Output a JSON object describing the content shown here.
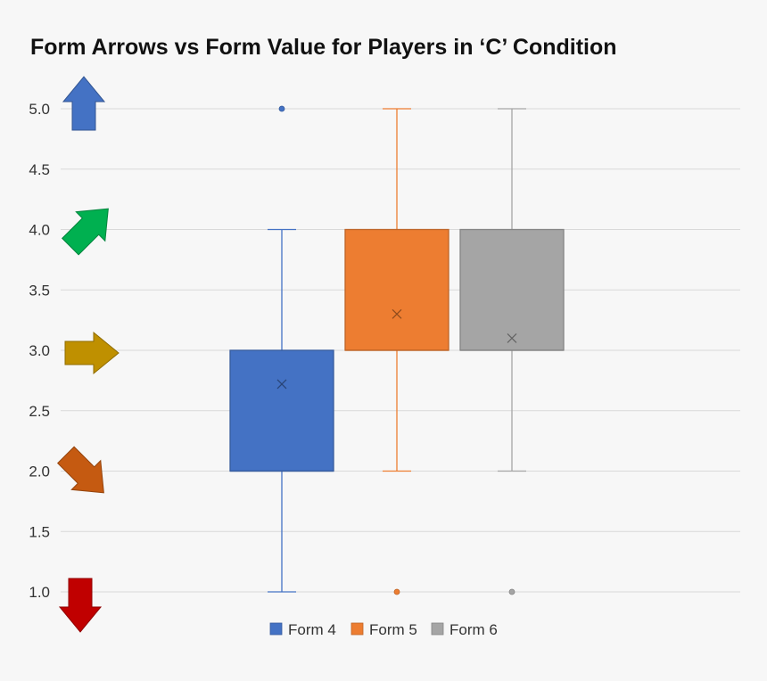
{
  "chart_data": {
    "type": "box",
    "title": "Form Arrows vs Form Value for Players in ‘C’ Condition",
    "xlabel": "",
    "ylabel": "",
    "ylim": [
      1.0,
      5.0
    ],
    "y_ticks": [
      "1.0",
      "1.5",
      "2.0",
      "2.5",
      "3.0",
      "3.5",
      "4.0",
      "4.5",
      "5.0"
    ],
    "grid": true,
    "legend_position": "bottom",
    "series": [
      {
        "name": "Form 4",
        "color": "#4472c4",
        "min": 1.0,
        "q1": 2.0,
        "median": 2.0,
        "q3": 3.0,
        "max": 4.0,
        "mean": 2.72,
        "outliers": [
          5.0
        ]
      },
      {
        "name": "Form 5",
        "color": "#ed7d31",
        "min": 2.0,
        "q1": 3.0,
        "median": 3.0,
        "q3": 4.0,
        "max": 5.0,
        "mean": 3.3,
        "outliers": [
          1.0
        ]
      },
      {
        "name": "Form 6",
        "color": "#a5a5a5",
        "min": 2.0,
        "q1": 3.0,
        "median": 3.0,
        "q3": 4.0,
        "max": 5.0,
        "mean": 3.1,
        "outliers": [
          1.0
        ]
      }
    ],
    "arrow_icons": [
      {
        "name": "up-arrow-icon",
        "value": 5.0,
        "direction": "up",
        "color": "#4472c4"
      },
      {
        "name": "up-right-arrow-icon",
        "value": 4.0,
        "direction": "up-right",
        "color": "#00b050"
      },
      {
        "name": "right-arrow-icon",
        "value": 3.0,
        "direction": "right",
        "color": "#bf9000"
      },
      {
        "name": "down-right-arrow-icon",
        "value": 2.0,
        "direction": "down-right",
        "color": "#c55a11"
      },
      {
        "name": "down-arrow-icon",
        "value": 1.0,
        "direction": "down",
        "color": "#c00000"
      }
    ]
  }
}
